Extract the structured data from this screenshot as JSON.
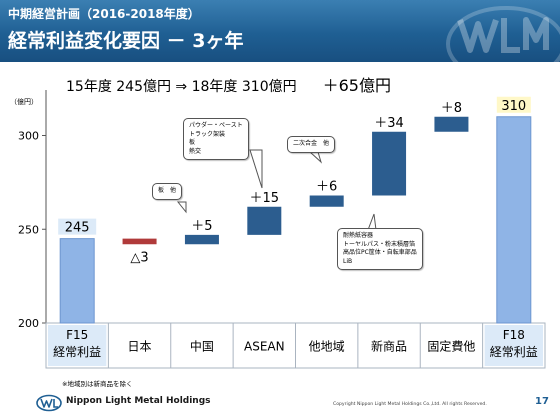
{
  "header": {
    "subtitle": "中期経営計画（2016-2018年度）",
    "title": "経常利益変化要因 － 3ヶ年"
  },
  "summary": {
    "text": "15年度 245億円 ⇒ 18年度 310億円",
    "diff": "＋65億円"
  },
  "chart_data": {
    "type": "bar",
    "subtype": "waterfall",
    "unit_label": "（億円）",
    "ylim": [
      200,
      320
    ],
    "yticks": [
      200,
      250,
      300
    ],
    "grid": false,
    "legend": "none",
    "categories": [
      {
        "label": "F15\n経常利益",
        "value": 245,
        "kind": "total",
        "value_label": "245"
      },
      {
        "label": "日本",
        "value": -3,
        "kind": "delta",
        "value_label": "△3"
      },
      {
        "label": "中国",
        "value": 5,
        "kind": "delta",
        "value_label": "＋5"
      },
      {
        "label": "ASEAN",
        "value": 15,
        "kind": "delta",
        "value_label": "＋15"
      },
      {
        "label": "他地域",
        "value": 6,
        "kind": "delta",
        "value_label": "＋6"
      },
      {
        "label": "新商品",
        "value": 34,
        "kind": "delta",
        "value_label": "＋34"
      },
      {
        "label": "固定費他",
        "value": 8,
        "kind": "delta",
        "value_label": "＋8"
      },
      {
        "label": "F18\n経常利益",
        "value": 310,
        "kind": "total",
        "value_label": "310"
      }
    ],
    "colors": {
      "total": "#8fb4e6",
      "total_border": "#6d96d0",
      "increase": "#2c5d8f",
      "decrease": "#b03a3a",
      "axis": "#555555",
      "box_border": "#aab4c0"
    }
  },
  "callouts": {
    "china": {
      "lines": [
        "板　他"
      ]
    },
    "asean": {
      "lines": [
        "パウダー・ペースト",
        "トラック架装",
        "板",
        "熱交"
      ]
    },
    "other": {
      "lines": [
        "二次合金　他"
      ]
    },
    "new_products": {
      "lines": [
        "耐熱紙容器",
        "トーヤルパス・粉末積層箔",
        "高品位PC筐体・自転車部品",
        "LiB"
      ]
    }
  },
  "footer": {
    "note": "※地域別は新商品を除く",
    "company": "Nippon Light Metal Holdings",
    "copyright": "Copyright Nippon Light Metal Holdings Co.,Ltd. All rights Reserved.",
    "page_number": "17"
  },
  "icons": {
    "header_logo": "nlm-logo-watermark",
    "footer_logo": "nlm-logo"
  }
}
